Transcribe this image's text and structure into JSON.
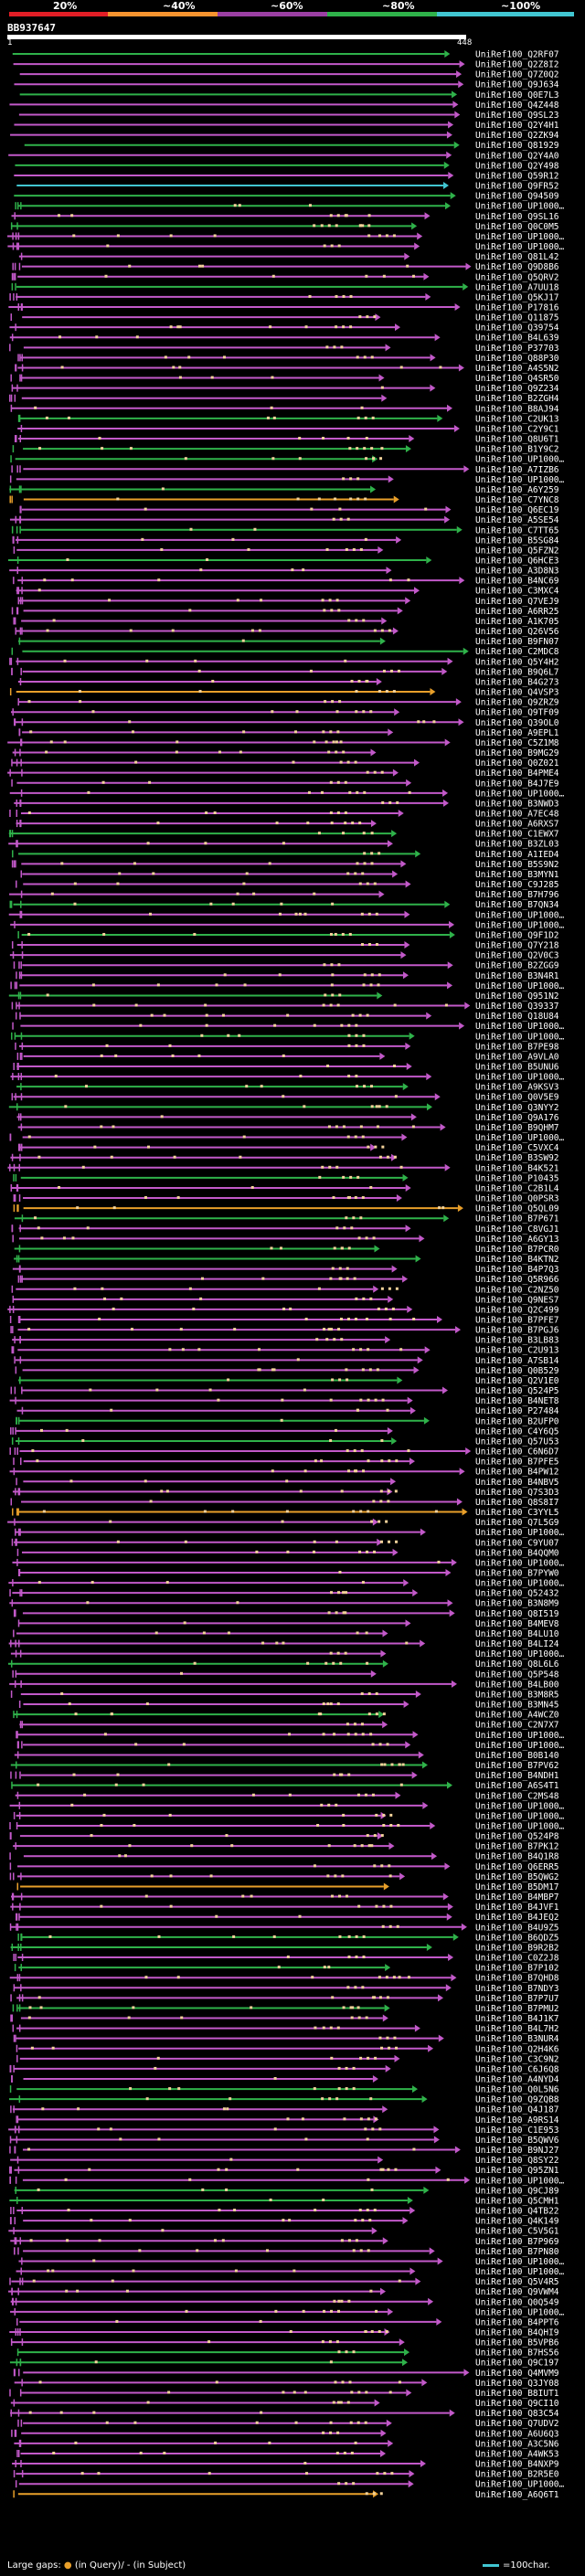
{
  "legend": {
    "labels": [
      "20%",
      "~40%",
      "~60%",
      "~80%",
      "~100%"
    ],
    "colors": [
      "#e21e26",
      "#f7942f",
      "#9b3fa3",
      "#2fb24a",
      "#41c6d1"
    ]
  },
  "query": {
    "title": "BB937647",
    "start": "1",
    "end": "448"
  },
  "hits": [
    "UniRef100_Q2RF07",
    "UniRef100_Q2Z8I2",
    "UniRef100_Q7Z0Q2",
    "UniRef100_Q9J634",
    "UniRef100_Q0E7L3",
    "UniRef100_Q4Z448",
    "UniRef100_Q9SL23",
    "UniRef100_Q2Y4H1",
    "UniRef100_Q2ZK94",
    "UniRef100_Q81929",
    "UniRef100_Q2Y4A0",
    "UniRef100_Q2Y498",
    "UniRef100_Q59R12",
    "UniRef100_Q9FR52",
    "UniRef100_Q94509",
    "UniRef100_UP1000…",
    "UniRef100_Q9SL16",
    "UniRef100_Q0C0M5",
    "UniRef100_UP1000…",
    "UniRef100_UP1000…",
    "UniRef100_Q81L42",
    "UniRef100_Q9D8B6",
    "UniRef100_Q5QRV2",
    "UniRef100_A7UU18",
    "UniRef100_Q5KJ17",
    "UniRef100_P17816",
    "UniRef100_Q11875",
    "UniRef100_Q39754",
    "UniRef100_B4L639",
    "UniRef100_P37703",
    "UniRef100_Q88P30",
    "UniRef100_A4S5N2",
    "UniRef100_Q4SR50",
    "UniRef100_Q9Z234",
    "UniRef100_B2ZGH4",
    "UniRef100_B8AJ94",
    "UniRef100_C2UK13",
    "UniRef100_C2Y9C1",
    "UniRef100_Q8U6T1",
    "UniRef100_B1Y9C2",
    "UniRef100_UP1000…",
    "UniRef100_A7IZB6",
    "UniRef100_UP1000…",
    "UniRef100_A6Y259",
    "UniRef100_C7YNC8",
    "UniRef100_Q6EC19",
    "UniRef100_A5SE54",
    "UniRef100_C7TT65",
    "UniRef100_B5SG84",
    "UniRef100_Q5FZN2",
    "UniRef100_Q6HCE3",
    "UniRef100_A3D8N3",
    "UniRef100_B4NC69",
    "UniRef100_C3MXC4",
    "UniRef100_Q7VEJ9",
    "UniRef100_A6RR25",
    "UniRef100_A1K705",
    "UniRef100_Q26V56",
    "UniRef100_B9FN07",
    "UniRef100_C2MDC8",
    "UniRef100_Q5Y4H2",
    "UniRef100_B9Q6L7",
    "UniRef100_B4G273",
    "UniRef100_Q4VSP3",
    "UniRef100_Q9ZRZ9",
    "UniRef100_Q9TF09",
    "UniRef100_Q39OL0",
    "UniRef100_A9EPL1",
    "UniRef100_C5Z1M8",
    "UniRef100_B9MG29",
    "UniRef100_Q0Z021",
    "UniRef100_B4PME4",
    "UniRef100_B4J7E9",
    "UniRef100_UP1000…",
    "UniRef100_B3NWD3",
    "UniRef100_A7EC48",
    "UniRef100_A6RXS7",
    "UniRef100_C1EWX7",
    "UniRef100_B3ZL03",
    "UniRef100_A1IED4",
    "UniRef100_B5S9N2",
    "UniRef100_B3MYN1",
    "UniRef100_C9J285",
    "UniRef100_B7H796",
    "UniRef100_B7QN34",
    "UniRef100_UP1000…",
    "UniRef100_UP1000…",
    "UniRef100_Q9F1D2",
    "UniRef100_Q7Y218",
    "UniRef100_Q2V0C3",
    "UniRef100_B2ZGG9",
    "UniRef100_B3N4R1",
    "UniRef100_UP1000…",
    "UniRef100_Q951N2",
    "UniRef100_Q39337",
    "UniRef100_Q18U84",
    "UniRef100_UP1000…",
    "UniRef100_UP1000…",
    "UniRef100_B7PE98",
    "UniRef100_A9VLA0",
    "UniRef100_B5UNU6",
    "UniRef100_UP1000…",
    "UniRef100_A9KSV3",
    "UniRef100_Q0V5E9",
    "UniRef100_Q3NYY2",
    "UniRef100_Q9A176",
    "UniRef100_B9QHM7",
    "UniRef100_UP1000…",
    "UniRef100_C5VXC4",
    "UniRef100_B3SW92",
    "UniRef100_B4K521",
    "UniRef100_P10435",
    "UniRef100_C2B1L4",
    "UniRef100_Q0PSR3",
    "UniRef100_Q5QL09",
    "UniRef100_B7P671",
    "UniRef100_C8VGJ1",
    "UniRef100_A6GY13",
    "UniRef100_B7PCR0",
    "UniRef100_B4KTN2",
    "UniRef100_B4P7Q3",
    "UniRef100_Q5R966",
    "UniRef100_C2NZ50",
    "UniRef100_Q9NES7",
    "UniRef100_Q2C499",
    "UniRef100_B7PFE7",
    "UniRef100_B7PGJ6",
    "UniRef100_B3LB83",
    "UniRef100_C2U913",
    "UniRef100_A7SB14",
    "UniRef100_Q0B529",
    "UniRef100_Q2V1E0",
    "UniRef100_Q524P5",
    "UniRef100_B4NET8",
    "UniRef100_P27484",
    "UniRef100_B2UFP0",
    "UniRef100_C4Y6Q5",
    "UniRef100_Q57U53",
    "UniRef100_C6N6D7",
    "UniRef100_B7PFE5",
    "UniRef100_B4PW12",
    "UniRef100_B4NBV5",
    "UniRef100_Q7S3D3",
    "UniRef100_Q8S8I7",
    "UniRef100_C3YYL5",
    "UniRef100_Q7L5G9",
    "UniRef100_UP1000…",
    "UniRef100_C9YU07",
    "UniRef100_B4QQM0",
    "UniRef100_UP1000…",
    "UniRef100_B7PYW0",
    "UniRef100_UP1000…",
    "UniRef100_Q52432",
    "UniRef100_B3N8M9",
    "UniRef100_Q8I519",
    "UniRef100_B4MEV8",
    "UniRef100_B4LU10",
    "UniRef100_B4LI24",
    "UniRef100_UP1000…",
    "UniRef100_Q8L6L6",
    "UniRef100_Q5P548",
    "UniRef100_B4LB00",
    "UniRef100_B3M8R5",
    "UniRef100_B3MN45",
    "UniRef100_A4WCZ0",
    "UniRef100_C2N7X7",
    "UniRef100_UP1000…",
    "UniRef100_UP1000…",
    "UniRef100_B0B140",
    "UniRef100_B7PV62",
    "UniRef100_B4NDH1",
    "UniRef100_A6S4T1",
    "UniRef100_C2MS48",
    "UniRef100_UP1000…",
    "UniRef100_UP1000…",
    "UniRef100_UP1000…",
    "UniRef100_Q524P8",
    "UniRef100_B7PK12",
    "UniRef100_B4Q1R8",
    "UniRef100_Q6ERR5",
    "UniRef100_B5QWG2",
    "UniRef100_B5DM17",
    "UniRef100_B4MBP7",
    "UniRef100_B4JVF1",
    "UniRef100_B4JEQ2",
    "UniRef100_B4U9Z5",
    "UniRef100_B6QDZ5",
    "UniRef100_B9R2B2",
    "UniRef100_C0Z2J8",
    "UniRef100_B7P102",
    "UniRef100_B7QHD8",
    "UniRef100_B7NDY3",
    "UniRef100_B7P7U7",
    "UniRef100_B7PMU2",
    "UniRef100_B4J1K7",
    "UniRef100_B4L7H2",
    "UniRef100_B3NUR4",
    "UniRef100_Q2H4K6",
    "UniRef100_C3C9N2",
    "UniRef100_C6J6Q8",
    "UniRef100_A4NYD4",
    "UniRef100_Q0L5N6",
    "UniRef100_Q9ZQB8",
    "UniRef100_Q4J187",
    "UniRef100_A9RS14",
    "UniRef100_C1E953",
    "UniRef100_B5QWV6",
    "UniRef100_B9NJ27",
    "UniRef100_Q8SY22",
    "UniRef100_Q95ZN1",
    "UniRef100_UP1000…",
    "UniRef100_Q9CJ89",
    "UniRef100_Q5CMH1",
    "UniRef100_Q4TB22",
    "UniRef100_Q4K149",
    "UniRef100_C5V5G1",
    "UniRef100_B7P969",
    "UniRef100_B7PN80",
    "UniRef100_UP1000…",
    "UniRef100_UP1000…",
    "UniRef100_Q5V4R5",
    "UniRef100_Q9VWM4",
    "UniRef100_Q0Q549",
    "UniRef100_UP1000…",
    "UniRef100_B4PPT6",
    "UniRef100_B4QHI9",
    "UniRef100_B5VPB6",
    "UniRef100_B7HS56",
    "UniRef100_Q9C197",
    "UniRef100_Q4MVM9",
    "UniRef100_Q3JY08",
    "UniRef100_B8IUT1",
    "UniRef100_Q9CI10",
    "UniRef100_Q83C54",
    "UniRef100_Q7UDV2",
    "UniRef100_A6U6Q3",
    "UniRef100_A3C5N6",
    "UniRef100_A4WK53",
    "UniRef100_B4NXP9",
    "UniRef100_B2R5E0",
    "UniRef100_UP1000…",
    "UniRef100_A6Q6T1"
  ],
  "footer": {
    "large_gaps": "Large gaps:",
    "in_query": "(in Query)/",
    "in_subject": "(in Subject)",
    "scale": "=100char."
  }
}
